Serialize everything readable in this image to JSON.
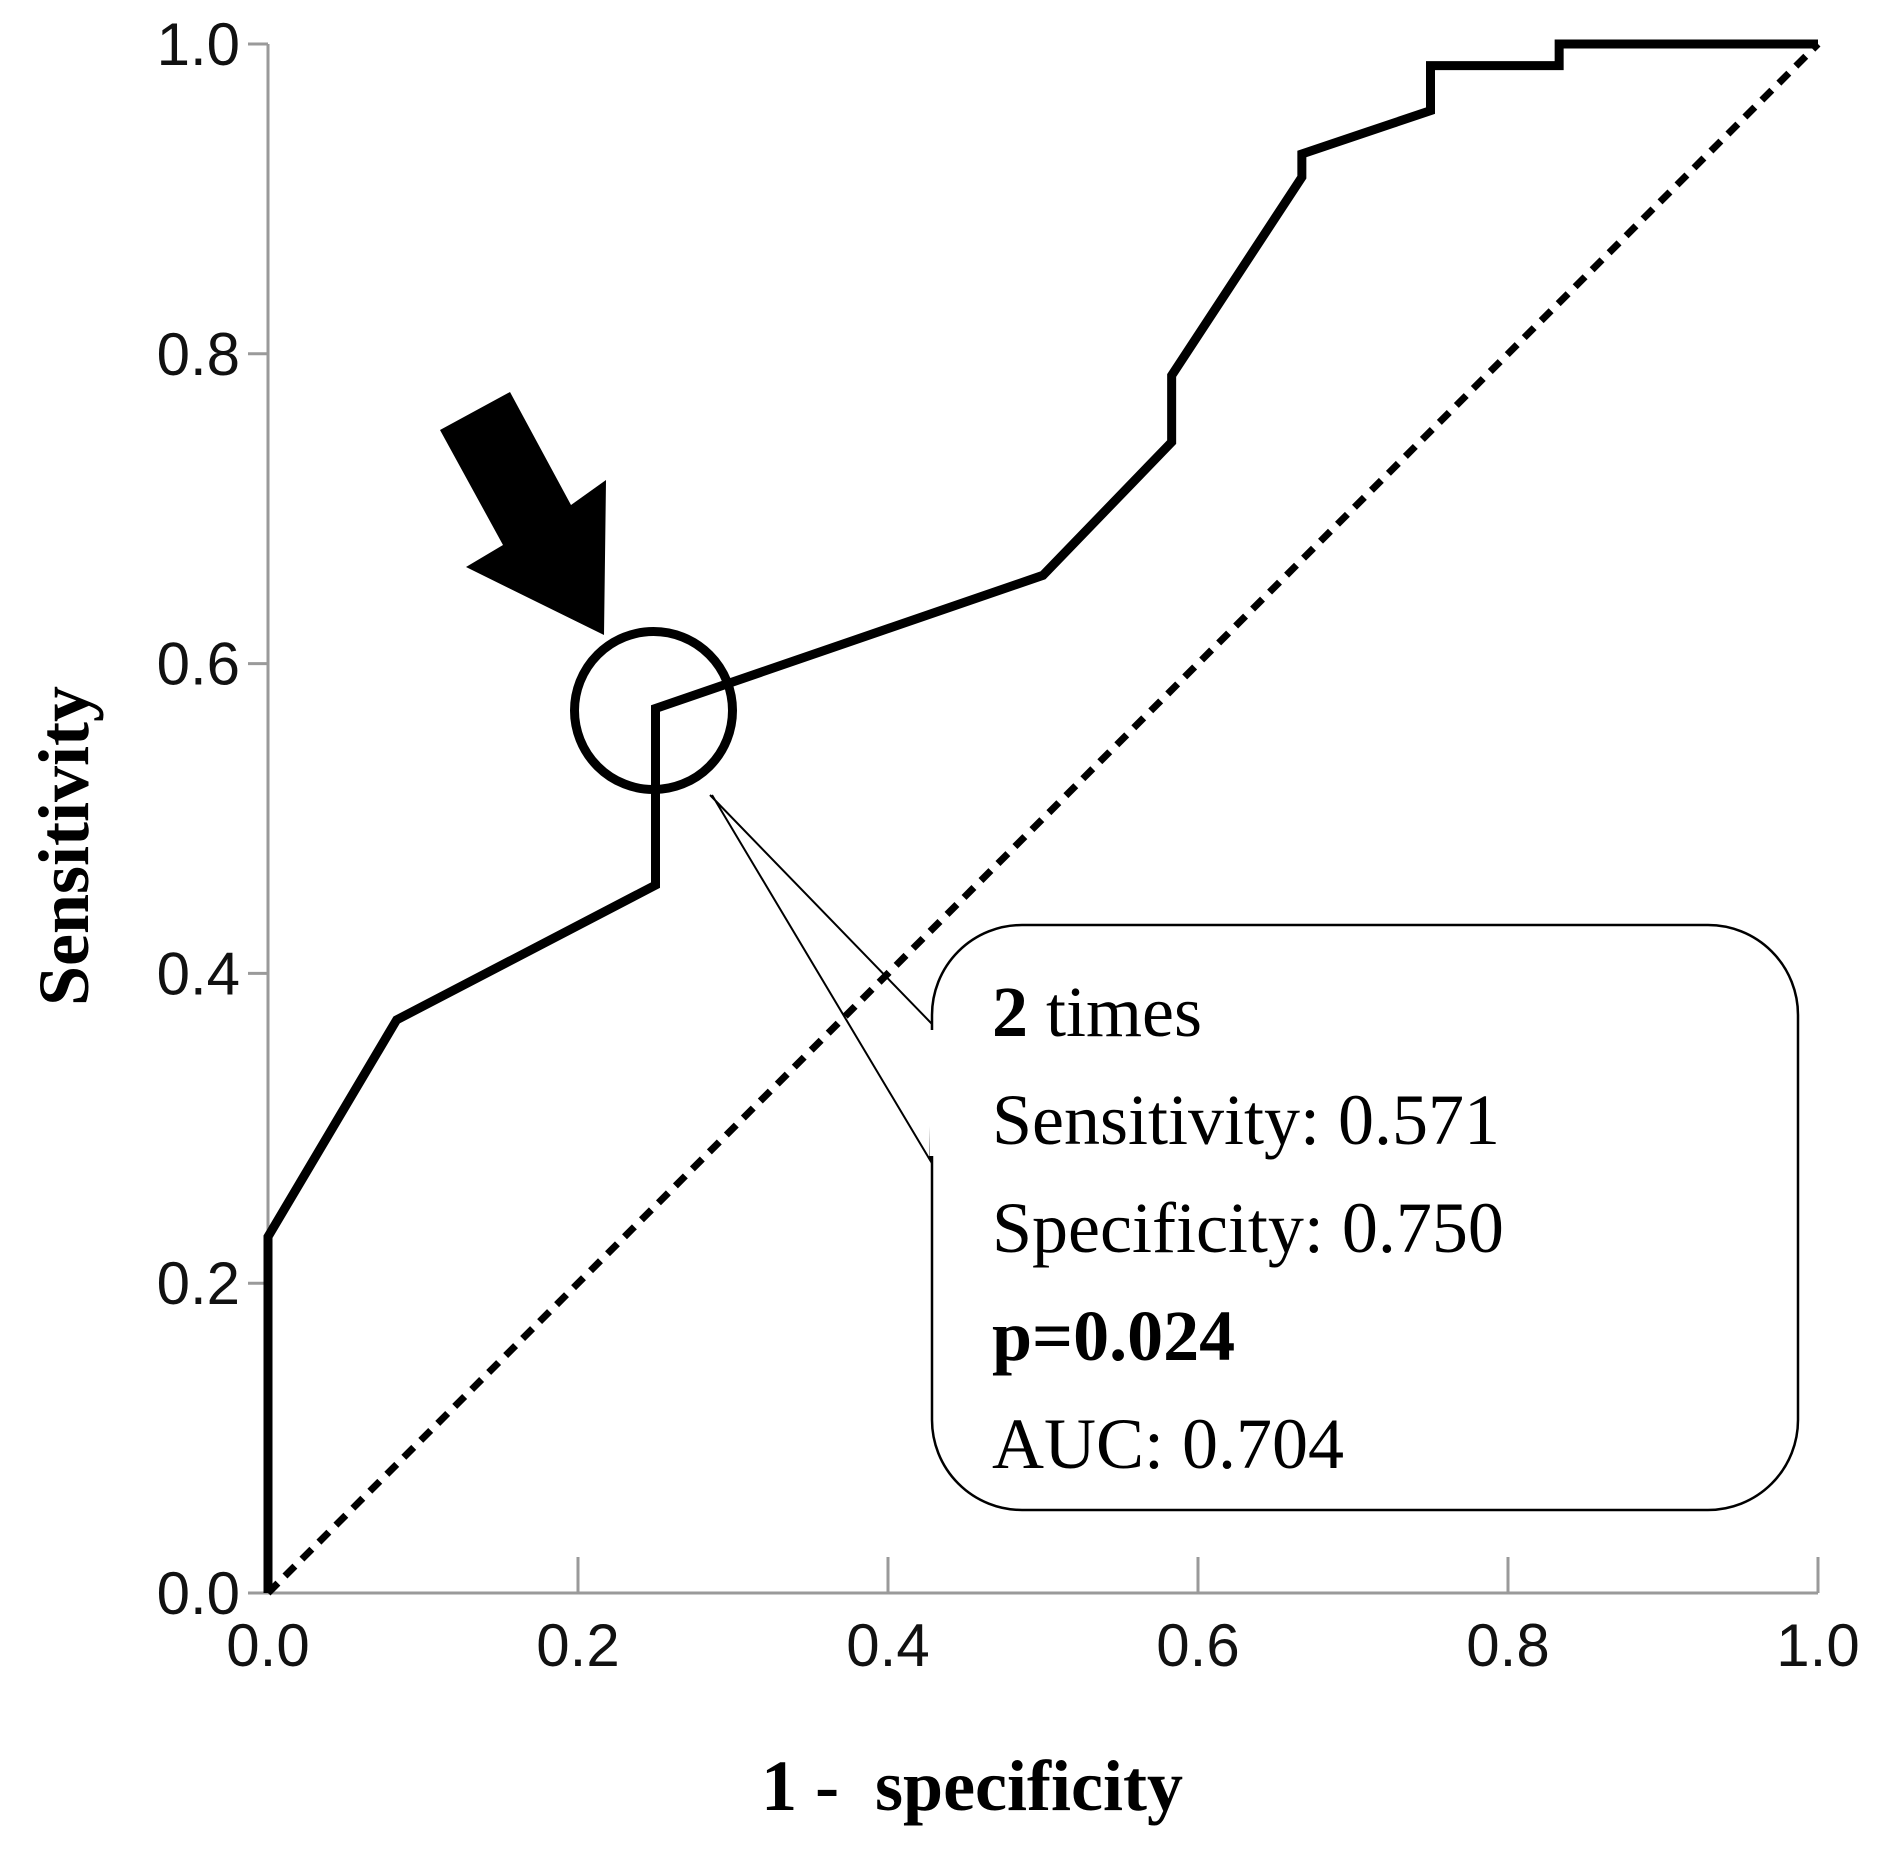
{
  "chart_data": {
    "type": "line",
    "xlabel": "1 -  specificity",
    "ylabel": "Sensitivity",
    "xlim": [
      0,
      1
    ],
    "ylim": [
      0,
      1
    ],
    "x_ticks": [
      "0.0",
      "0.2",
      "0.4",
      "0.6",
      "0.8",
      "1.0"
    ],
    "y_ticks": [
      "0.0",
      "0.2",
      "0.4",
      "0.6",
      "0.8",
      "1.0"
    ],
    "grid": false,
    "series": [
      {
        "name": "ROC curve",
        "style": "solid",
        "x": [
          0.0,
          0.0,
          0.083,
          0.25,
          0.25,
          0.5,
          0.583,
          0.583,
          0.667,
          0.667,
          0.75,
          0.75,
          0.833,
          0.833,
          1.0
        ],
        "y": [
          0.0,
          0.23,
          0.37,
          0.457,
          0.571,
          0.657,
          0.743,
          0.786,
          0.914,
          0.929,
          0.957,
          0.986,
          0.986,
          1.0,
          1.0
        ]
      },
      {
        "name": "Reference line",
        "style": "dashed",
        "x": [
          0.0,
          1.0
        ],
        "y": [
          0.0,
          1.0
        ]
      }
    ],
    "highlight_point": {
      "x": 0.25,
      "y": 0.571
    },
    "annotation": {
      "count_bold": "2",
      "count_rest": " times",
      "sensitivity": "Sensitivity:  0.571",
      "specificity": "Specificity:  0.750",
      "p_value": "p=0.024",
      "auc": "AUC: 0.704"
    }
  },
  "colors": {
    "line": "#000000",
    "axis": "#9a9a9a",
    "background": "#ffffff"
  },
  "icons": {
    "arrow": "arrow-down-right-icon",
    "circle": "highlight-circle-icon"
  }
}
